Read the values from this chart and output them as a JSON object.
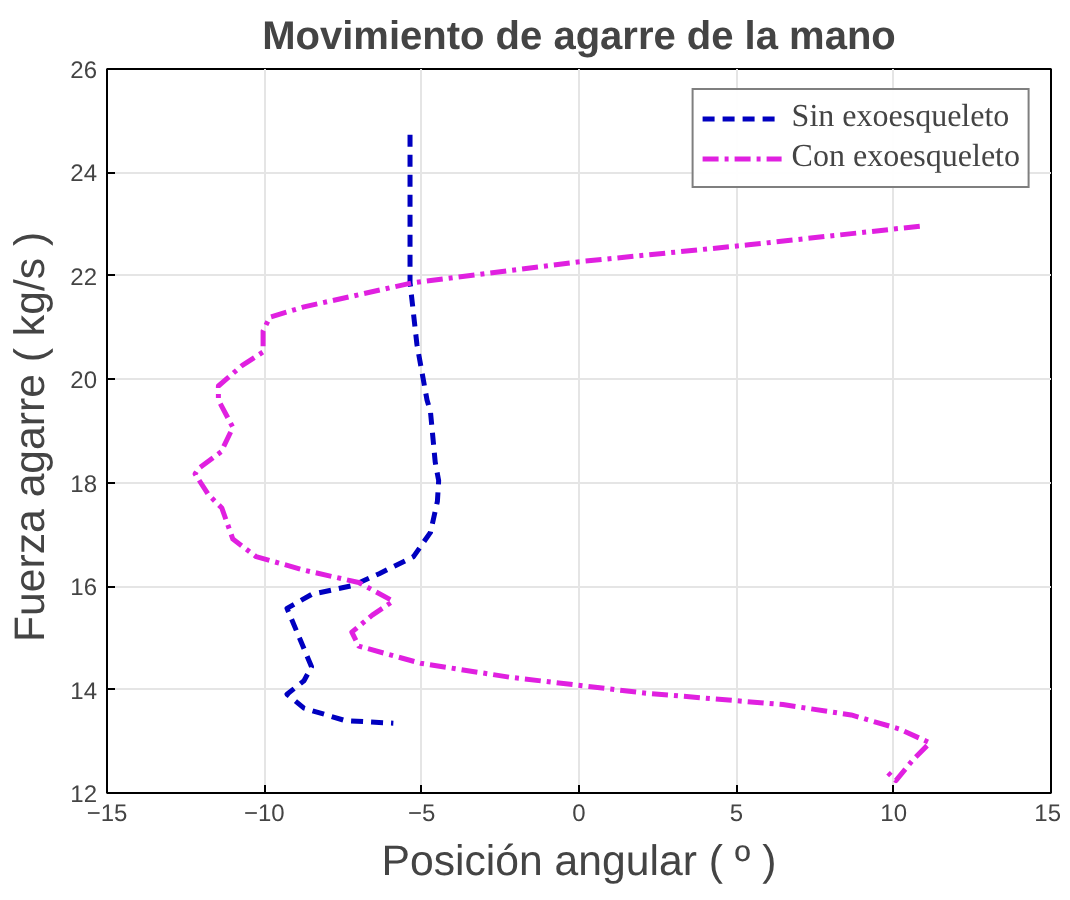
{
  "chart_data": {
    "type": "line",
    "title": "Movimiento de agarre de la mano",
    "xlabel": "Posición angular ( º )",
    "ylabel": "Fuerza agarre  ( kg/s )",
    "xlim": [
      -15,
      15
    ],
    "xticks": [
      -15,
      -10,
      -5,
      0,
      5,
      10,
      15
    ],
    "ylim": [
      12,
      26
    ],
    "yticks": [
      12,
      14,
      16,
      18,
      20,
      22,
      24,
      26
    ],
    "grid": true,
    "legend": "top right",
    "marker": "none",
    "series": [
      {
        "name": "Sin exoesqueleto",
        "color": "#0000c0",
        "line_style": "dashed",
        "x": [
          -5.37,
          -5.37,
          -5.15,
          -4.83,
          -4.72,
          -4.57,
          -4.46,
          -4.5,
          -4.72,
          -5.26,
          -6.35,
          -7.2,
          -8.5,
          -9.28,
          -8.96,
          -8.5,
          -8.74,
          -9.28,
          -8.74,
          -7.43,
          -5.9
        ],
        "values": [
          24.73,
          21.87,
          20.67,
          19.6,
          19.37,
          18.4,
          18.04,
          17.64,
          17.04,
          16.57,
          16.24,
          16.01,
          15.84,
          15.57,
          15.11,
          14.44,
          14.17,
          13.91,
          13.64,
          13.4,
          13.35
        ]
      },
      {
        "name": "Con exoesqueleto",
        "color": "#e020e0",
        "line_style": "dashdot",
        "x": [
          10.83,
          5.39,
          -0.04,
          -5.26,
          -8.74,
          -9.83,
          -10.04,
          -10.04,
          -10.7,
          -11.46,
          -11.46,
          -11.0,
          -11.37,
          -12.1,
          -12.2,
          -11.78,
          -11.35,
          -11.0,
          -10.26,
          -8.74,
          -7.0,
          -5.91,
          -6.57,
          -7.22,
          -7.0,
          -5.04,
          -2.22,
          2.13,
          6.48,
          8.65,
          10.17,
          11.15,
          10.61,
          10.07,
          9.74
        ],
        "values": [
          22.96,
          22.6,
          22.27,
          21.87,
          21.4,
          21.2,
          20.93,
          20.53,
          20.27,
          19.87,
          19.6,
          19.07,
          18.6,
          18.27,
          18.17,
          17.77,
          17.51,
          16.91,
          16.57,
          16.31,
          16.07,
          15.71,
          15.44,
          15.11,
          14.84,
          14.51,
          14.24,
          13.93,
          13.71,
          13.51,
          13.24,
          12.97,
          12.64,
          12.24,
          12.44
        ]
      }
    ]
  }
}
